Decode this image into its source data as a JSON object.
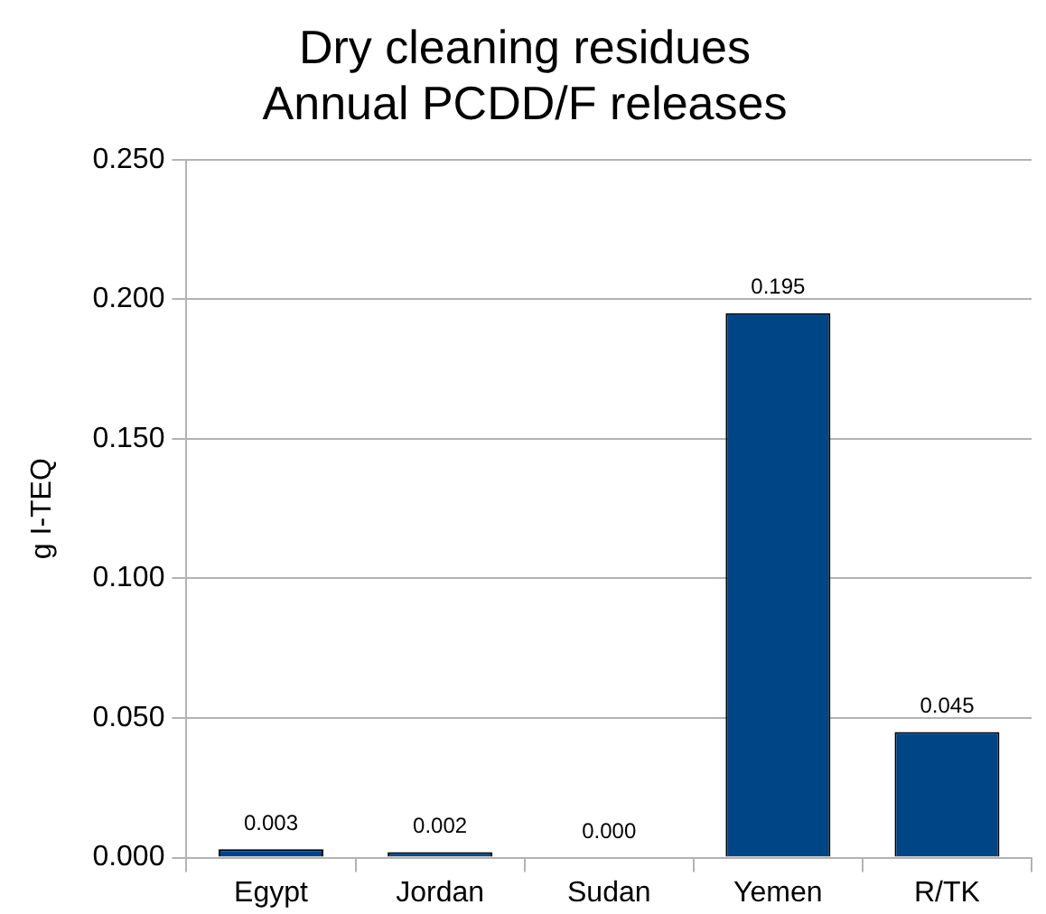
{
  "chart_data": {
    "type": "bar",
    "title": "Dry cleaning residues\nAnnual PCDD/F releases",
    "ylabel": "g I-TEQ",
    "categories": [
      "Egypt",
      "Jordan",
      "Sudan",
      "Yemen",
      "R/TK"
    ],
    "values": [
      0.003,
      0.002,
      0,
      0.195,
      0.045
    ],
    "value_labels": [
      "0.003",
      "0.002",
      "0.000",
      "0.195",
      "0.045"
    ],
    "color": "#004586",
    "ylim": [
      0,
      0.25
    ],
    "yticks": [
      {
        "value": 0,
        "label": "0.000"
      },
      {
        "value": 0.05,
        "label": "0.050"
      },
      {
        "value": 0.1,
        "label": "0.100"
      },
      {
        "value": 0.15,
        "label": "0.150"
      },
      {
        "value": 0.2,
        "label": "0.200"
      },
      {
        "value": 0.25,
        "label": "0.250"
      }
    ],
    "grid": "y",
    "legend": false
  }
}
